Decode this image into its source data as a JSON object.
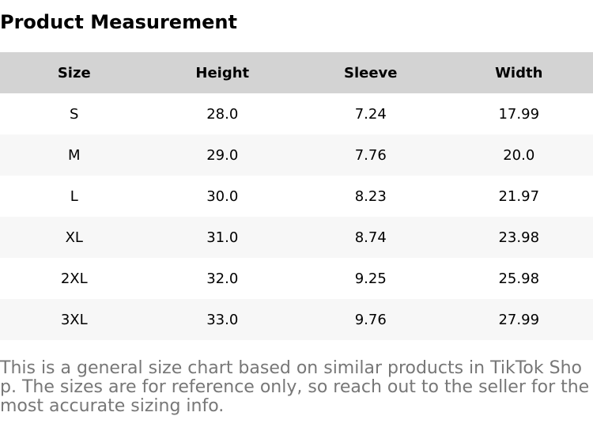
{
  "header": {
    "title": "Product Measurement"
  },
  "table": {
    "columns": [
      "Size",
      "Height",
      "Sleeve",
      "Width"
    ],
    "rows": [
      [
        "S",
        "28.0",
        "7.24",
        "17.99"
      ],
      [
        "M",
        "29.0",
        "7.76",
        "20.0"
      ],
      [
        "L",
        "30.0",
        "8.23",
        "21.97"
      ],
      [
        "XL",
        "31.0",
        "8.74",
        "23.98"
      ],
      [
        "2XL",
        "32.0",
        "9.25",
        "25.98"
      ],
      [
        "3XL",
        "33.0",
        "9.76",
        "27.99"
      ]
    ]
  },
  "footer": {
    "note": "This is a general size chart based on similar products in TikTok Shop. The sizes are for reference only, so reach out to the seller for the most accurate sizing info."
  }
}
